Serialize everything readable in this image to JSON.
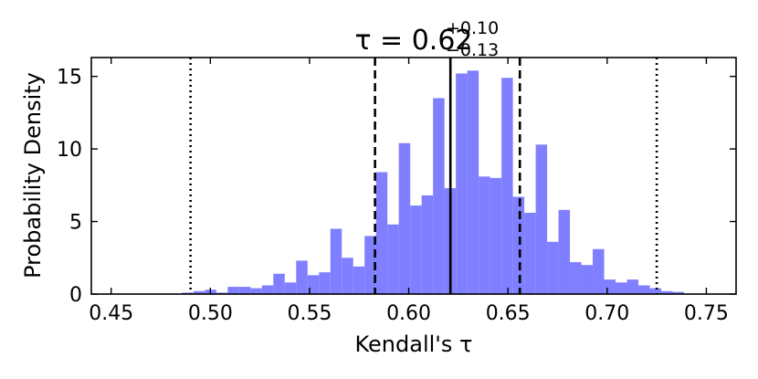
{
  "chart_data": {
    "type": "bar",
    "title": {
      "main": "τ = 0.62",
      "sup": "+0.10",
      "sub": "−0.13"
    },
    "xlabel": "Kendall's τ",
    "ylabel": "Probability Density",
    "xlim": [
      0.44,
      0.765
    ],
    "ylim": [
      0,
      16.3
    ],
    "xticks": [
      0.45,
      0.5,
      0.55,
      0.6,
      0.65,
      0.7,
      0.75
    ],
    "xtick_labels": [
      "0.45",
      "0.50",
      "0.55",
      "0.60",
      "0.65",
      "0.70",
      "0.75"
    ],
    "yticks": [
      0,
      5,
      10,
      15
    ],
    "ytick_labels": [
      "0",
      "5",
      "10",
      "15"
    ],
    "bar_color": "#7f7fff",
    "bins": {
      "start": 0.4455,
      "width": 0.00575,
      "values": [
        0,
        0,
        0,
        0,
        0,
        0,
        0,
        0.1,
        0.2,
        0.3,
        0.1,
        0.5,
        0.5,
        0.4,
        0.6,
        1.4,
        0.8,
        2.3,
        1.3,
        1.5,
        4.5,
        2.5,
        1.9,
        4.0,
        8.4,
        4.8,
        10.4,
        6.1,
        6.8,
        13.5,
        7.3,
        15.2,
        15.4,
        8.1,
        8.0,
        14.9,
        6.7,
        5.6,
        10.3,
        3.6,
        5.8,
        2.2,
        2.0,
        3.1,
        1.0,
        0.8,
        1.0,
        0.6,
        0.4,
        0.2,
        0.15
      ]
    },
    "vlines": [
      {
        "x": 0.621,
        "style": "solid"
      },
      {
        "x": 0.583,
        "style": "dashed"
      },
      {
        "x": 0.656,
        "style": "dashed"
      },
      {
        "x": 0.49,
        "style": "dotted"
      },
      {
        "x": 0.725,
        "style": "dotted"
      }
    ],
    "grid": false,
    "legend": "none"
  }
}
